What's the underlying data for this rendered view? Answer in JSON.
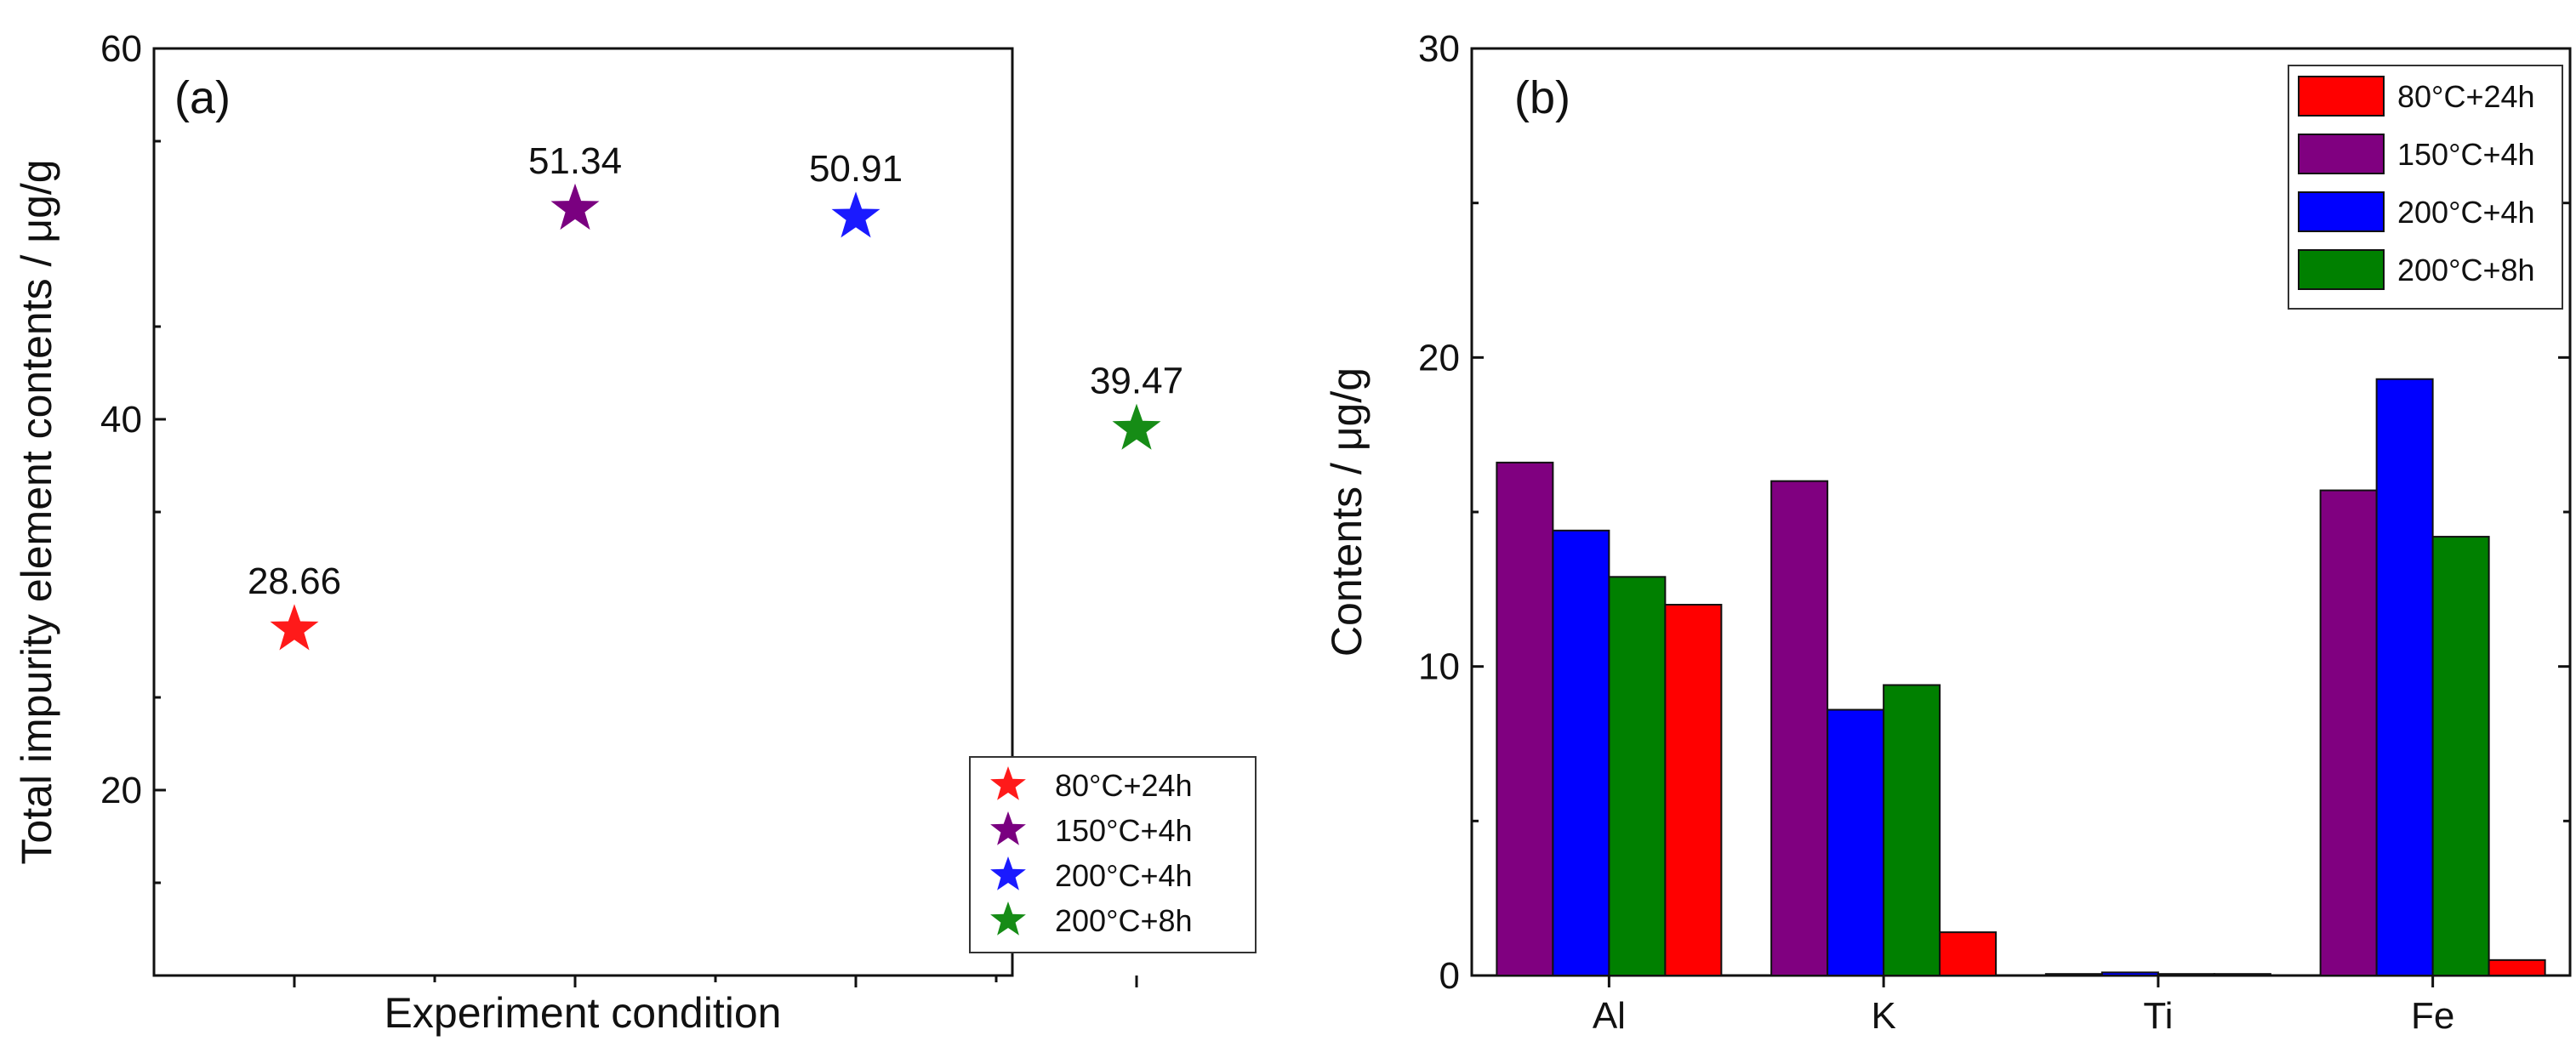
{
  "chart_data": [
    {
      "panel": "(a)",
      "type": "scatter",
      "marker": "star",
      "xlabel": "Experiment condition",
      "ylabel": "Total impurity element contents / μg/g",
      "ylim": [
        10,
        60
      ],
      "yticks": [
        20,
        40,
        60
      ],
      "categories": [
        "80°C+24h",
        "150°C+4h",
        "200°C+4h",
        "200°C+8h"
      ],
      "values": [
        28.66,
        51.34,
        50.91,
        39.47
      ],
      "labels": [
        "28.66",
        "51.34",
        "50.91",
        "39.47"
      ],
      "colors": [
        "#ff1a1a",
        "#7a0080",
        "#1a1aff",
        "#168c16"
      ],
      "legend": {
        "placement": "bottom-right",
        "entries": [
          "80°C+24h",
          "150°C+4h",
          "200°C+4h",
          "200°C+8h"
        ]
      }
    },
    {
      "panel": "(b)",
      "type": "bar",
      "xlabel": "",
      "ylabel": "Contents / μg/g",
      "ylim": [
        0,
        30
      ],
      "yticks": [
        0,
        10,
        20,
        30
      ],
      "categories": [
        "Al",
        "K",
        "Ti",
        "Fe"
      ],
      "bar_order": [
        "150°C+4h",
        "200°C+4h",
        "200°C+8h",
        "80°C+24h"
      ],
      "series": [
        {
          "name": "80°C+24h",
          "color": "#ff0000",
          "values": [
            12.0,
            1.4,
            0.05,
            0.5
          ]
        },
        {
          "name": "150°C+4h",
          "color": "#800080",
          "values": [
            16.6,
            16.0,
            0.05,
            15.7
          ]
        },
        {
          "name": "200°C+4h",
          "color": "#0000ff",
          "values": [
            14.4,
            8.6,
            0.1,
            19.3
          ]
        },
        {
          "name": "200°C+8h",
          "color": "#008000",
          "values": [
            12.9,
            9.4,
            0.05,
            14.2
          ]
        }
      ],
      "legend": {
        "placement": "top-right",
        "entries": [
          "80°C+24h",
          "150°C+4h",
          "200°C+4h",
          "200°C+8h"
        ]
      }
    }
  ]
}
